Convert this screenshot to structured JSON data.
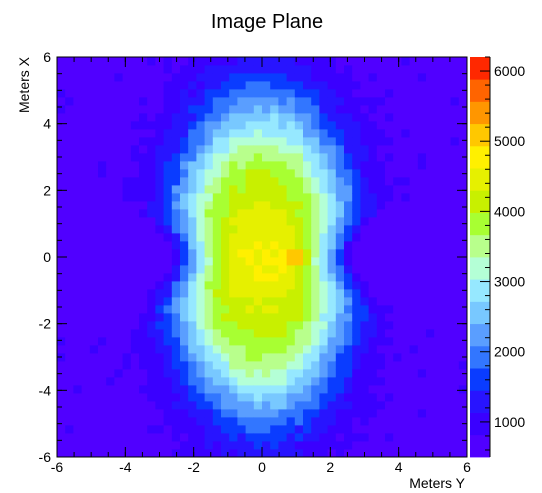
{
  "chart_data": {
    "type": "heatmap",
    "title": "Image Plane",
    "xlabel": "Meters Y",
    "ylabel": "Meters X",
    "xlim": [
      -6,
      6
    ],
    "ylim": [
      -6,
      6
    ],
    "x_ticks": [
      "-6",
      "-4",
      "-2",
      "0",
      "2",
      "4",
      "6"
    ],
    "y_ticks": [
      "-6",
      "-4",
      "-2",
      "0",
      "2",
      "4",
      "6"
    ],
    "bins": [
      50,
      50
    ],
    "zlim": [
      500,
      6200
    ],
    "z_ticks": [
      "1000",
      "2000",
      "3000",
      "4000",
      "5000",
      "6000"
    ],
    "grid": false,
    "distribution": {
      "shape": "peanut-shaped intensity distribution elongated along Meters X, with two lobes above and below a narrow waist near X = 0",
      "lobe_centers": [
        [
          0,
          1.8
        ],
        [
          0,
          -1.8
        ]
      ],
      "lobe_peak_value": 4400,
      "central_waist_value": 4600,
      "hot_spot": {
        "x": 1.0,
        "y": 0.0,
        "value": 6000
      },
      "edge_value": 700,
      "corner_value": 600
    },
    "palette": [
      "#5000ff",
      "#3a00ff",
      "#2814ff",
      "#0a3cff",
      "#3276ff",
      "#5a9eff",
      "#78c8ff",
      "#96e8ff",
      "#b4ffd6",
      "#b8ff8c",
      "#a8ff32",
      "#c8f000",
      "#e6f000",
      "#fff000",
      "#ffc800",
      "#ff9600",
      "#ff6400",
      "#ff2800"
    ]
  }
}
